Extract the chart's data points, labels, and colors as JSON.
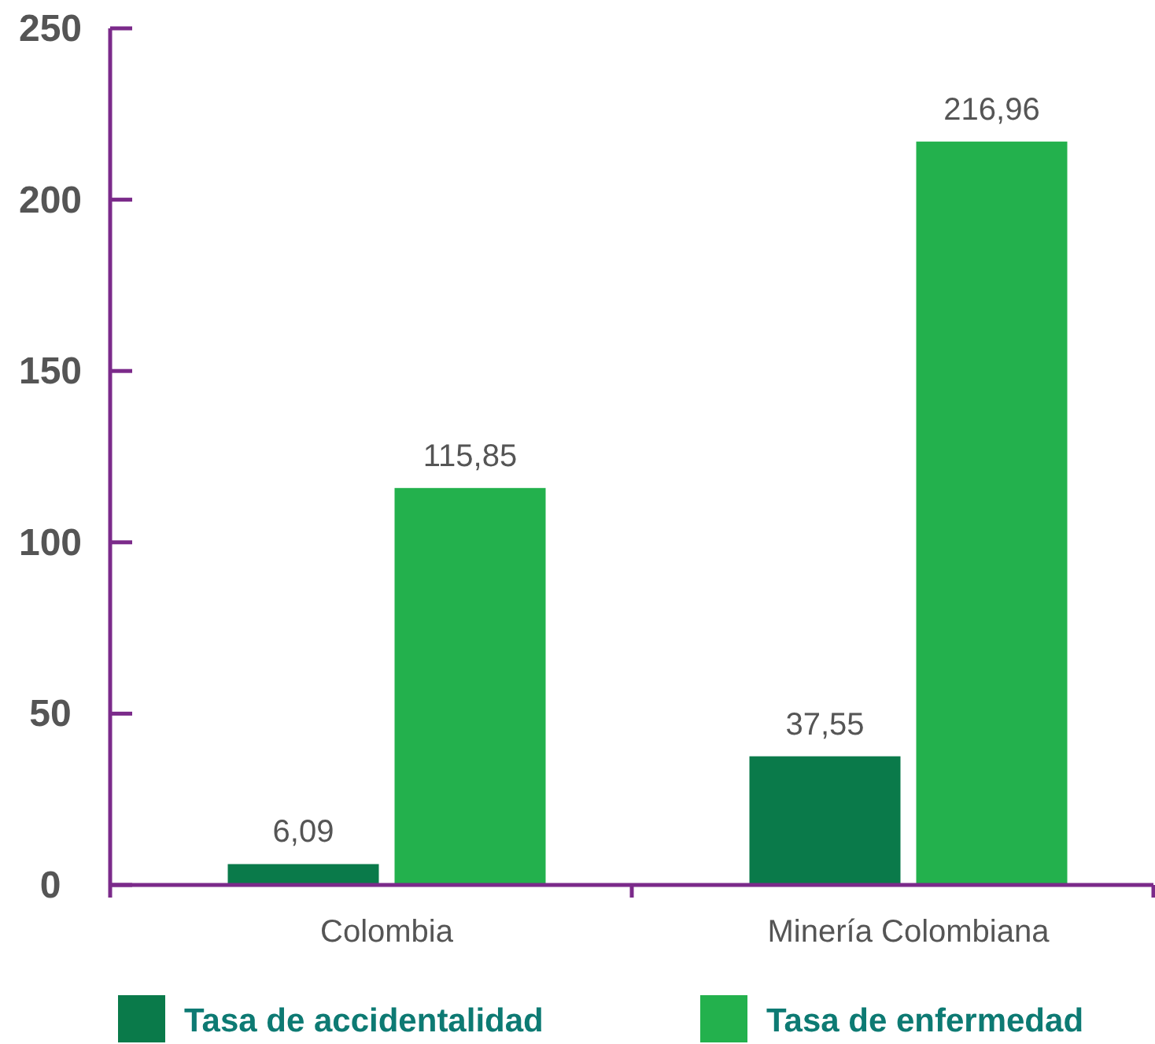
{
  "chart_data": {
    "type": "bar",
    "categories": [
      "Colombia",
      "Minería Colombiana"
    ],
    "series": [
      {
        "name": "Tasa de accidentalidad",
        "color": "#0a7a4a",
        "values": [
          6.09,
          37.55
        ],
        "value_labels": [
          "6,09",
          "37,55"
        ]
      },
      {
        "name": "Tasa de enfermedad",
        "color": "#23b14d",
        "values": [
          115.85,
          216.96
        ],
        "value_labels": [
          "115,85",
          "216,96"
        ]
      }
    ],
    "ylim": [
      0,
      250
    ],
    "yticks": [
      0,
      50,
      100,
      150,
      200,
      250
    ],
    "grid": false,
    "legend": "bottom"
  }
}
